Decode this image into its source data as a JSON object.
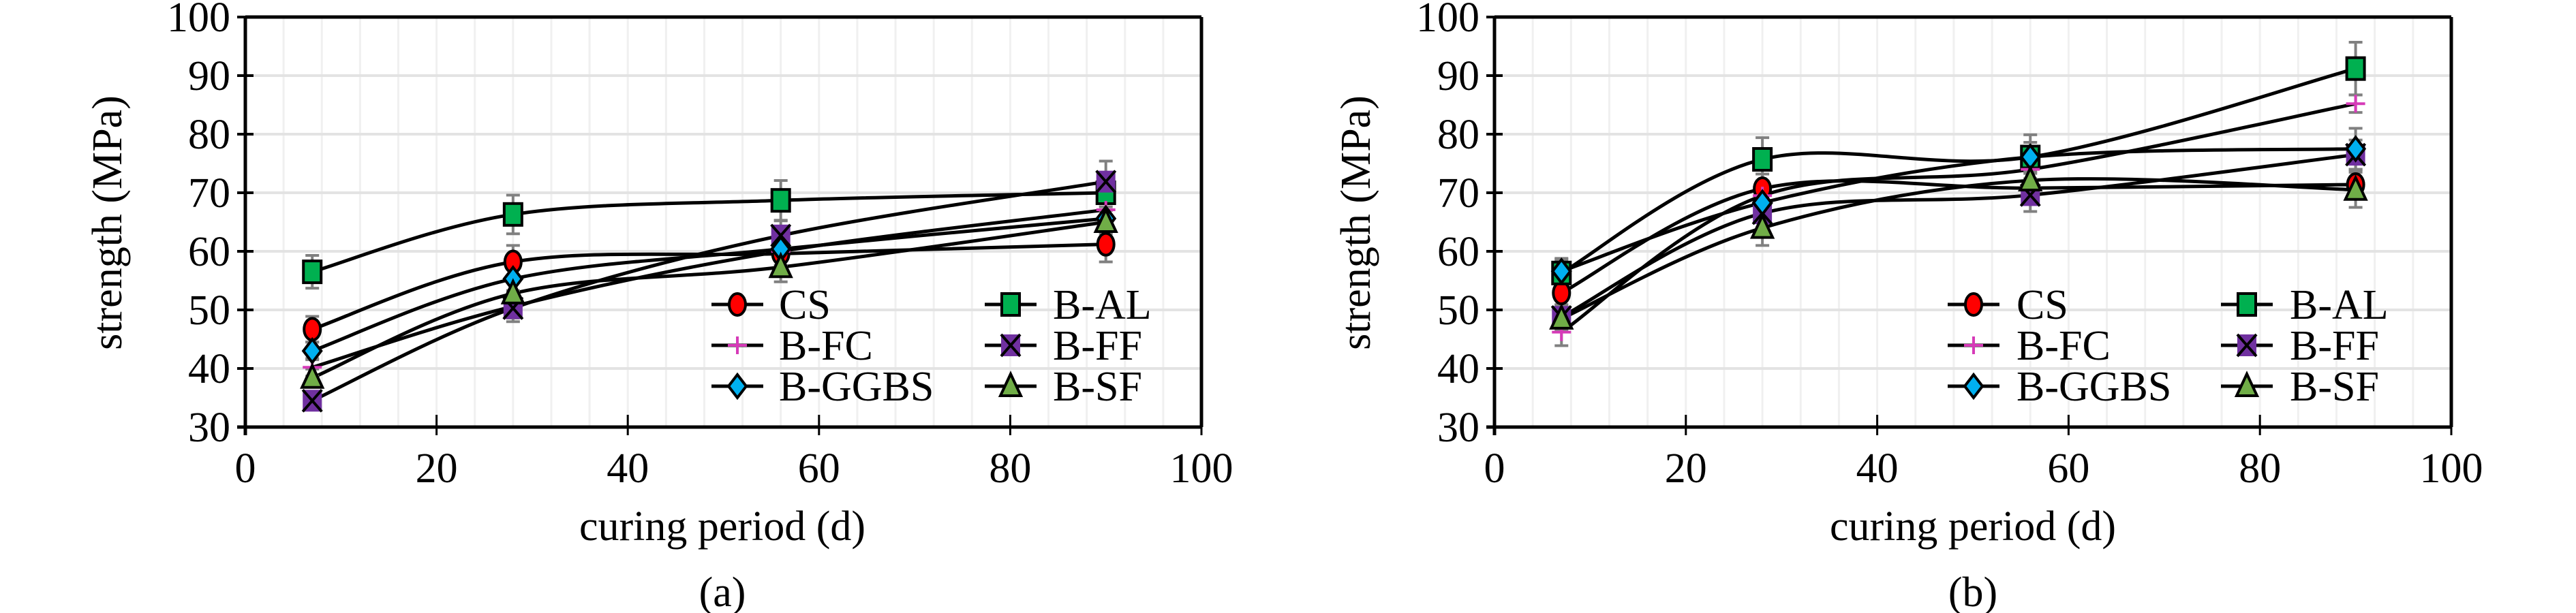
{
  "chart_data": [
    {
      "type": "line",
      "panel_label": "(a)",
      "xlabel": "curing period (d)",
      "ylabel": "strength (MPa)",
      "xlim": [
        0,
        100
      ],
      "ylim": [
        30,
        100
      ],
      "xticks": [
        "0",
        "20",
        "40",
        "60",
        "80",
        "100"
      ],
      "yticks": [
        "30",
        "40",
        "50",
        "60",
        "70",
        "80",
        "90",
        "100"
      ],
      "grid": true,
      "legend_position": "bottom-right",
      "x": [
        7,
        28,
        56,
        90
      ],
      "series": [
        {
          "name": "CS",
          "marker": "circle",
          "color": "#ff0000",
          "values": [
            46.7,
            58.2,
            59.6,
            61.2
          ],
          "errors": [
            2.2,
            2.8,
            2.0,
            3.0
          ]
        },
        {
          "name": "B-AL",
          "marker": "square",
          "color": "#00b050",
          "values": [
            56.5,
            66.3,
            68.7,
            70.0
          ],
          "errors": [
            2.8,
            3.3,
            3.4,
            3.0
          ]
        },
        {
          "name": "B-FC",
          "marker": "plus",
          "color": "#d63ab8",
          "values": [
            40.2,
            50.6,
            60.0,
            67.1
          ],
          "errors": [
            1.5,
            2.0,
            2.5,
            2.0
          ]
        },
        {
          "name": "B-FF",
          "marker": "xsquare",
          "color": "#7030a0",
          "values": [
            34.5,
            50.3,
            62.7,
            71.9
          ],
          "errors": [
            1.5,
            2.3,
            2.5,
            3.5
          ]
        },
        {
          "name": "B-GGBS",
          "marker": "diamond",
          "color": "#00b0f0",
          "values": [
            43.0,
            55.3,
            60.4,
            65.6
          ],
          "errors": [
            1.5,
            2.0,
            2.0,
            2.0
          ]
        },
        {
          "name": "B-SF",
          "marker": "triangle",
          "color": "#70ad47",
          "values": [
            38.4,
            52.8,
            57.3,
            65.0
          ],
          "errors": [
            1.5,
            2.0,
            2.5,
            2.0
          ]
        }
      ]
    },
    {
      "type": "line",
      "panel_label": "(b)",
      "xlabel": "curing period (d)",
      "ylabel": "strength (MPa)",
      "xlim": [
        0,
        100
      ],
      "ylim": [
        30,
        100
      ],
      "xticks": [
        "0",
        "20",
        "40",
        "60",
        "80",
        "100"
      ],
      "yticks": [
        "30",
        "40",
        "50",
        "60",
        "70",
        "80",
        "90",
        "100"
      ],
      "grid": true,
      "legend_position": "bottom-right",
      "x": [
        7,
        28,
        56,
        90
      ],
      "series": [
        {
          "name": "CS",
          "marker": "circle",
          "color": "#ff0000",
          "values": [
            52.9,
            70.7,
            70.8,
            71.4
          ],
          "errors": [
            2.0,
            2.5,
            2.5,
            2.5
          ]
        },
        {
          "name": "B-AL",
          "marker": "square",
          "color": "#00b050",
          "values": [
            56.3,
            75.7,
            76.1,
            91.2
          ],
          "errors": [
            2.5,
            3.7,
            3.8,
            4.5
          ]
        },
        {
          "name": "B-FC",
          "marker": "plus",
          "color": "#d63ab8",
          "values": [
            46.2,
            69.5,
            74.0,
            85.2
          ],
          "errors": [
            2.3,
            2.5,
            2.5,
            1.5
          ]
        },
        {
          "name": "B-FF",
          "marker": "xsquare",
          "color": "#7030a0",
          "values": [
            48.8,
            66.5,
            69.6,
            76.5
          ],
          "errors": [
            2.0,
            2.5,
            2.8,
            2.5
          ]
        },
        {
          "name": "B-GGBS",
          "marker": "diamond",
          "color": "#00b0f0",
          "values": [
            56.6,
            68.3,
            76.1,
            77.5
          ],
          "errors": [
            2.0,
            2.5,
            2.5,
            3.5
          ]
        },
        {
          "name": "B-SF",
          "marker": "triangle",
          "color": "#70ad47",
          "values": [
            48.5,
            64.0,
            72.1,
            70.5
          ],
          "errors": [
            2.0,
            3.0,
            2.5,
            3.0
          ]
        }
      ]
    }
  ]
}
